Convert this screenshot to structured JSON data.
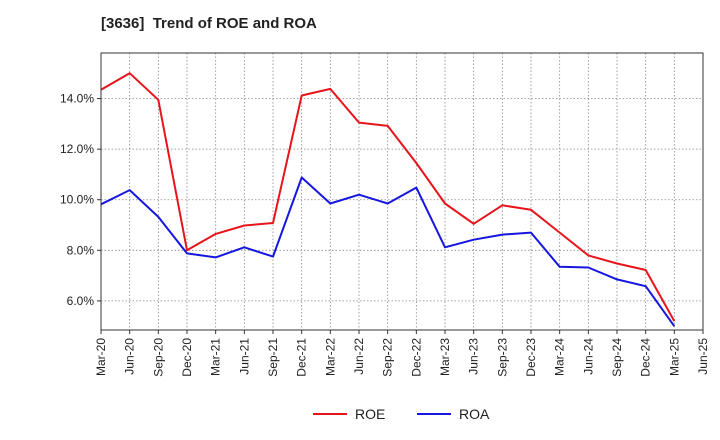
{
  "chart_data": {
    "type": "line",
    "title": "[3636]  Trend of ROE and ROA",
    "xlabel": "",
    "ylabel": "",
    "x": [
      "Mar-20",
      "Jun-20",
      "Sep-20",
      "Dec-20",
      "Mar-21",
      "Jun-21",
      "Sep-21",
      "Dec-21",
      "Mar-22",
      "Jun-22",
      "Sep-22",
      "Dec-22",
      "Mar-23",
      "Jun-23",
      "Sep-23",
      "Dec-23",
      "Mar-24",
      "Jun-24",
      "Sep-24",
      "Dec-24",
      "Mar-25",
      "Jun-25"
    ],
    "ylim": [
      4.85,
      15.8
    ],
    "yticks": [
      6.0,
      8.0,
      10.0,
      12.0,
      14.0
    ],
    "ytick_labels": [
      "6.0%",
      "8.0%",
      "10.0%",
      "12.0%",
      "14.0%"
    ],
    "grid": true,
    "legend_position": "bottom-center",
    "series": [
      {
        "name": "ROE",
        "color": "#e8141b",
        "values": [
          14.35,
          15.0,
          13.95,
          8.0,
          8.65,
          8.98,
          9.08,
          14.12,
          14.38,
          13.05,
          12.92,
          11.45,
          9.85,
          9.05,
          9.78,
          9.6,
          8.7,
          7.8,
          7.48,
          7.22,
          5.2,
          null
        ]
      },
      {
        "name": "ROA",
        "color": "#1616e0",
        "values": [
          9.82,
          10.38,
          9.32,
          7.88,
          7.72,
          8.12,
          7.75,
          10.88,
          9.85,
          10.2,
          9.85,
          10.48,
          8.12,
          8.42,
          8.62,
          8.7,
          7.35,
          7.32,
          6.85,
          6.58,
          5.0,
          null
        ]
      }
    ]
  }
}
